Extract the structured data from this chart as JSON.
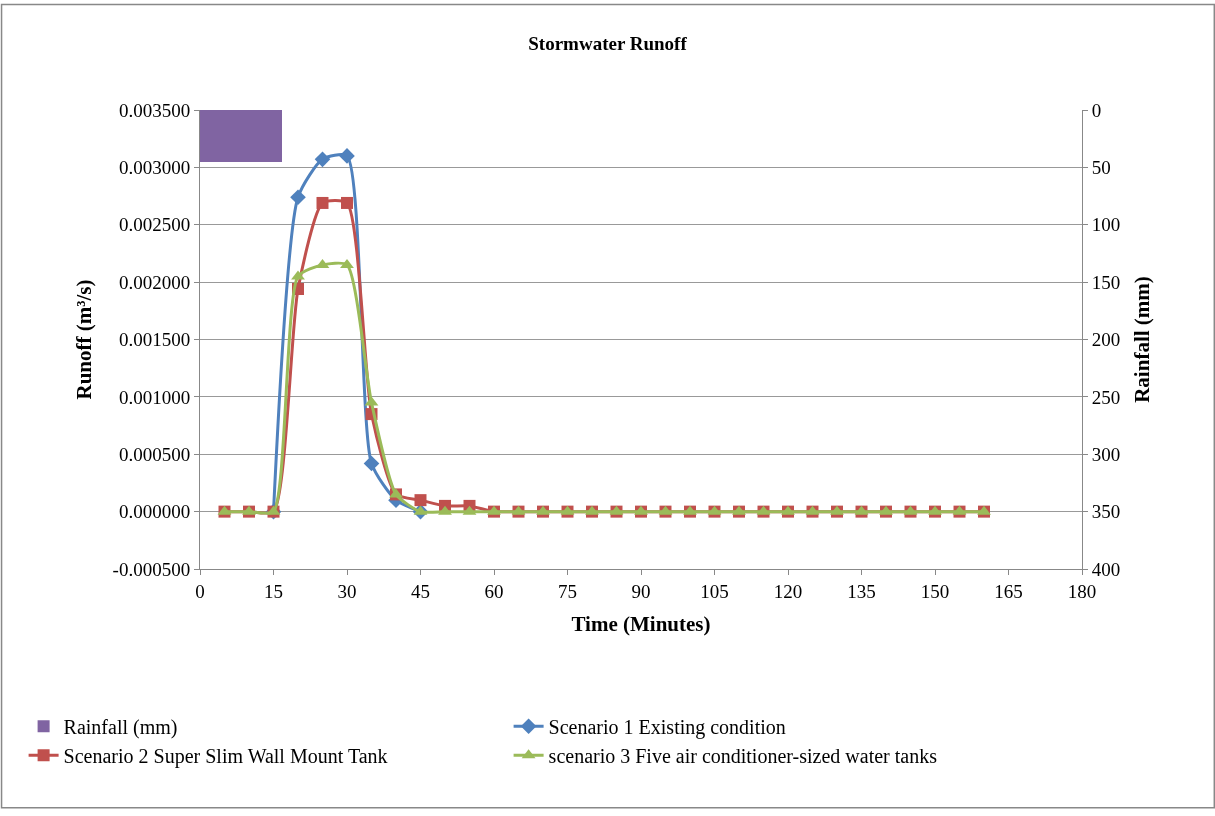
{
  "chart_data": {
    "type": "line",
    "title": "Stormwater Runoff",
    "xlabel": "Time (Minutes)",
    "ylabel": "Runoff (m³/s)",
    "y2label": "Rainfall (mm)",
    "xlim": [
      0,
      180
    ],
    "xticks": [
      0,
      15,
      30,
      45,
      60,
      75,
      90,
      105,
      120,
      135,
      150,
      165,
      180
    ],
    "ylim": [
      -0.0005,
      0.0035
    ],
    "yticks": [
      {
        "value": -0.0005,
        "label": "-0.000500"
      },
      {
        "value": 0,
        "label": "0.000000"
      },
      {
        "value": 0.0005,
        "label": "0.000500"
      },
      {
        "value": 0.001,
        "label": "0.001000"
      },
      {
        "value": 0.0015,
        "label": "0.001500"
      },
      {
        "value": 0.002,
        "label": "0.002000"
      },
      {
        "value": 0.0025,
        "label": "0.002500"
      },
      {
        "value": 0.003,
        "label": "0.003000"
      },
      {
        "value": 0.0035,
        "label": "0.003500"
      }
    ],
    "y2lim": [
      400,
      0
    ],
    "y2ticks": [
      0,
      50,
      100,
      150,
      200,
      250,
      300,
      350,
      400
    ],
    "x": [
      5,
      10,
      15,
      20,
      25,
      30,
      35,
      40,
      45,
      50,
      55,
      60,
      65,
      70,
      75,
      80,
      85,
      90,
      95,
      100,
      105,
      110,
      115,
      120,
      125,
      130,
      135,
      140,
      145,
      150,
      155,
      160
    ],
    "grid": "y",
    "legend": "bottom",
    "series": [
      {
        "name": "Rainfall (mm)",
        "type": "bar",
        "axis": "y2",
        "color": "#8064a2",
        "x": [
          8.35
        ],
        "values": [
          45
        ]
      },
      {
        "name": "Scenario 1 Existing condition",
        "color": "#4f81bd",
        "marker": "diamond",
        "values": [
          null,
          null,
          0,
          0.00274,
          0.00307,
          0.0031,
          0.00042,
          0.0001,
          0,
          null,
          null,
          null,
          null,
          null,
          null,
          null,
          null,
          null,
          null,
          null,
          null,
          null,
          null,
          null,
          null,
          null,
          null,
          null,
          null,
          null,
          null,
          null
        ]
      },
      {
        "name": "Scenario 2 Super Slim Wall Mount Tank",
        "color": "#c0504d",
        "marker": "square",
        "values": [
          0,
          0,
          0,
          0.00194,
          0.00269,
          0.00269,
          0.00085,
          0.00015,
          0.0001,
          5e-05,
          5e-05,
          0,
          0,
          0,
          0,
          0,
          0,
          0,
          0,
          0,
          0,
          0,
          0,
          0,
          0,
          0,
          0,
          0,
          0,
          0,
          0,
          0
        ]
      },
      {
        "name": "scenario 3 Five air conditioner-sized water tanks",
        "color": "#9bbb59",
        "marker": "triangle",
        "values": [
          0,
          0,
          0,
          0.00205,
          0.00215,
          0.00215,
          0.00095,
          0.00015,
          0,
          0,
          0,
          0,
          0,
          0,
          0,
          0,
          0,
          0,
          0,
          0,
          0,
          0,
          0,
          0,
          0,
          0,
          0,
          0,
          0,
          0,
          0,
          0
        ]
      }
    ]
  }
}
